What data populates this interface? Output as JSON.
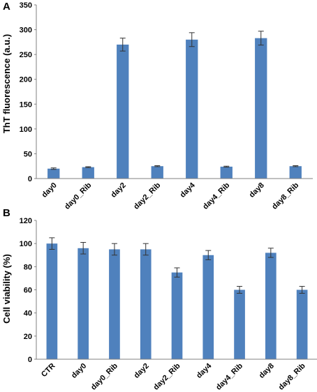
{
  "chart_data": [
    {
      "type": "bar",
      "panel_label": "A",
      "ylabel": "ThT fluorescence (a.u.)",
      "xlabel": "",
      "ylim": [
        0,
        350
      ],
      "yticks": [
        0,
        50,
        100,
        150,
        200,
        250,
        300,
        350
      ],
      "categories": [
        "day0",
        "day0_Rib",
        "day2",
        "day2_Rib",
        "day4",
        "day4_Rib",
        "day8",
        "day8_Rib"
      ],
      "values": [
        20,
        23,
        270,
        25,
        280,
        24,
        283,
        25
      ],
      "errors": [
        1.5,
        1,
        13,
        1,
        14,
        1,
        14,
        1
      ],
      "grid": false,
      "bar_color": "#4f81bd"
    },
    {
      "type": "bar",
      "panel_label": "B",
      "ylabel": "Cell viability (%)",
      "xlabel": "",
      "ylim": [
        0,
        120
      ],
      "yticks": [
        0,
        20,
        40,
        60,
        80,
        100,
        120
      ],
      "categories": [
        "CTR",
        "day0",
        "day0_Rib",
        "day2",
        "day2_Rib",
        "day4",
        "day4_Rib",
        "day8",
        "day8_Rib"
      ],
      "values": [
        100,
        96,
        95,
        95,
        75,
        90,
        60,
        92,
        60
      ],
      "errors": [
        5,
        5,
        5,
        5,
        4,
        4,
        3,
        4,
        3
      ],
      "grid": false,
      "bar_color": "#4f81bd"
    }
  ]
}
